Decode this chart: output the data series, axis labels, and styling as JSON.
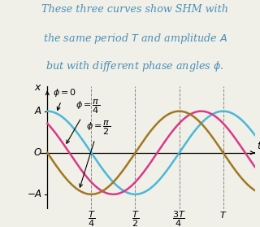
{
  "bg_color": "#f0efe8",
  "curve_color_phi0": "#4ab8d8",
  "curve_color_phi_pi4": "#d63b8a",
  "curve_color_phi_pi2": "#a07820",
  "text_color": "#4a90b8",
  "ylim": [
    -1.35,
    1.6
  ],
  "xlim_left": -0.04,
  "xlim_right": 1.18,
  "T": 1.0,
  "lw": 1.8
}
